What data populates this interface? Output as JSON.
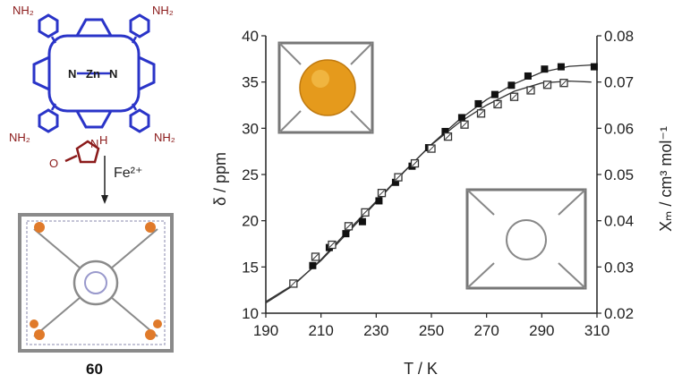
{
  "scheme": {
    "porphyrin": {
      "substituent_label": "NH₂",
      "metal_label": "Zn",
      "nitrogen_label": "N"
    },
    "imidazole": {
      "nitrogen_label": "N",
      "nh_label": "H",
      "oxygen_label": "O"
    },
    "reagent": "Fe²⁺",
    "compound_number": "60"
  },
  "chart_data": {
    "type": "scatter",
    "xlabel": "T / K",
    "ylabel": "δ / ppm",
    "y2label": "Xₘ / cm³ mol⁻¹",
    "xlim": [
      190,
      310
    ],
    "ylim": [
      10,
      40
    ],
    "y2lim": [
      0.02,
      0.08
    ],
    "x_ticks": [
      190,
      210,
      230,
      250,
      270,
      290,
      310
    ],
    "y_ticks": [
      10,
      15,
      20,
      25,
      30,
      35,
      40
    ],
    "y2_ticks": [
      "0.02",
      "0.03",
      "0.04",
      "0.05",
      "0.06",
      "0.07",
      "0.08"
    ],
    "series": [
      {
        "marker": "filled-square",
        "axis": "right",
        "x": [
          207,
          213,
          219,
          225,
          231,
          237,
          243,
          249,
          255,
          261,
          267,
          273,
          279,
          285,
          291,
          297,
          309
        ],
        "y": [
          0.0303,
          0.0342,
          0.0372,
          0.0398,
          0.0443,
          0.0483,
          0.0518,
          0.0558,
          0.0593,
          0.0623,
          0.0653,
          0.0673,
          0.0693,
          0.0713,
          0.0728,
          0.0733,
          0.0733
        ]
      },
      {
        "marker": "open-square",
        "axis": "left",
        "x": [
          200,
          208,
          214,
          220,
          226,
          232,
          238,
          244,
          250,
          256,
          262,
          268,
          274,
          280,
          286,
          292,
          298
        ],
        "y": [
          13.2,
          16.1,
          17.4,
          19.4,
          20.9,
          23.0,
          24.7,
          26.2,
          27.8,
          29.1,
          30.4,
          31.6,
          32.6,
          33.4,
          34.1,
          34.7,
          34.9
        ]
      }
    ],
    "fits": [
      {
        "axis": "right",
        "x": [
          190,
          200,
          210,
          220,
          230,
          240,
          250,
          260,
          270,
          280,
          290,
          300,
          308
        ],
        "y": [
          0.0225,
          0.0262,
          0.0314,
          0.0376,
          0.044,
          0.0505,
          0.0565,
          0.0618,
          0.0662,
          0.0696,
          0.0721,
          0.0734,
          0.0737
        ]
      },
      {
        "axis": "left",
        "x": [
          190,
          200,
          210,
          220,
          230,
          240,
          250,
          260,
          270,
          280,
          290,
          300,
          308
        ],
        "y": [
          11.1,
          13.0,
          15.8,
          19.0,
          22.1,
          25.3,
          28.2,
          30.6,
          32.5,
          34.0,
          34.9,
          35.1,
          35.0
        ]
      }
    ]
  }
}
